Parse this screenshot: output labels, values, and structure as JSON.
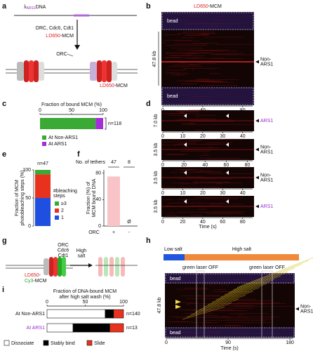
{
  "a": {
    "label": "a",
    "dna_symbol": "λ",
    "dna_sub": "ARS1",
    "dna_text": "DNA",
    "factors": "ORC, Cdc6, Cdt1",
    "mcm_dye": "LD650",
    "mcm_suffix": "-MCM",
    "orc": "ORC",
    "result_dye": "LD650",
    "result_suffix": "-MCM"
  },
  "b": {
    "label": "b",
    "title_dye": "LD650",
    "title_suffix": "-MCM",
    "length": "47.8 kb",
    "bead_top": "bead",
    "bead_bottom": "bead",
    "site": [
      "Non-",
      "ARS1"
    ],
    "xlim": [
      0,
      90
    ],
    "xticks": [
      0,
      40,
      80
    ],
    "xlabel": "Time (s)"
  },
  "c": {
    "label": "c",
    "title": "Fraction of bound MCM (%)",
    "xlim": [
      0,
      100
    ],
    "xticks": [
      0,
      50,
      100
    ],
    "series": [
      {
        "name": "At Non-ARS1",
        "color": "#3aaa35",
        "value": 88
      },
      {
        "name": "At ARS1",
        "color": "#a52fd6",
        "value": 12
      }
    ],
    "n": "n=118"
  },
  "d": {
    "label": "d",
    "xlabel": "Time (s)",
    "rows": [
      {
        "length": "7.0 kb",
        "site": [
          "ARS1"
        ],
        "xlim": [
          0,
          45
        ],
        "xticks": [
          0,
          10,
          20,
          30,
          40
        ]
      },
      {
        "length": "3.5 kb",
        "site": [
          "Non-",
          "ARS1"
        ],
        "xlim": [
          0,
          85
        ],
        "xticks": [
          0,
          20,
          40,
          60,
          80
        ]
      },
      {
        "length": "3.5 kb",
        "site": [
          "Non-",
          "ARS1"
        ],
        "xlim": [
          0,
          45
        ],
        "xticks": [
          0,
          10,
          20,
          30,
          40
        ]
      },
      {
        "length": "3.5 kb",
        "site": [
          "ARS1"
        ],
        "xlim": [
          0,
          90
        ],
        "xticks": [
          0,
          20,
          40,
          60,
          80
        ]
      }
    ]
  },
  "e": {
    "label": "e",
    "n": "n=47",
    "ylabel": [
      "Fraction of MCM",
      "photobleaching steps (%)"
    ],
    "ylim": [
      0,
      100
    ],
    "yticks": [
      0,
      50,
      100
    ],
    "legend_title": [
      "#bleaching",
      "steps"
    ],
    "series": [
      {
        "name": "1",
        "color": "#1f4fe0",
        "value": 50
      },
      {
        "name": "2",
        "color": "#e8321e",
        "value": 42
      },
      {
        "name": "≥3",
        "color": "#3aaa35",
        "value": 8
      }
    ]
  },
  "f": {
    "label": "f",
    "tethers_title": "No. of tethers",
    "tethers": [
      47,
      8
    ],
    "ylabel": [
      "Fraction (%) of",
      "MCM bound DNA"
    ],
    "ylim": [
      0,
      85
    ],
    "yticks": [
      0,
      40,
      80
    ],
    "xlabel": "ORC",
    "categories": [
      "+",
      "-"
    ],
    "values": [
      75,
      0
    ],
    "value_labels": [
      null,
      "Ø"
    ],
    "color": "#f8c4c8"
  },
  "g": {
    "label": "g",
    "factors": [
      "ORC",
      "Cdc6",
      "Cdt1"
    ],
    "dye1": "LD650",
    "dye1_suffix": "-",
    "dye2": "Cy3",
    "dye2_suffix": "-MCM",
    "wash": [
      "High",
      "salt"
    ]
  },
  "h": {
    "label": "h",
    "phases": [
      {
        "name": "Low salt",
        "color": "#2255dd"
      },
      {
        "name": "High salt",
        "color": "#f08a3a"
      }
    ],
    "laser": [
      "green laser OFF",
      "green laser OFF"
    ],
    "bead_top": "bead",
    "bead_bottom": "bead",
    "length": "47.8 kb",
    "site": [
      "Non-",
      "ARS1"
    ],
    "xlim": [
      0,
      185
    ],
    "xticks": [
      0,
      90,
      180
    ],
    "xlabel": "Time (s)"
  },
  "i": {
    "label": "i",
    "title": [
      "Fraction of DNA-bound MCM",
      "after high salt wash (%)"
    ],
    "xlim": [
      0,
      100
    ],
    "xticks": [
      0,
      50,
      100
    ],
    "categories": [
      "At Non-ARS1",
      "At ARS1"
    ],
    "n": [
      "n=140",
      "n=13"
    ],
    "series": [
      {
        "name": "Dissociate",
        "color": "#ffffff",
        "values": [
          76,
          34
        ]
      },
      {
        "name": "Stably bind",
        "color": "#000000",
        "values": [
          11,
          48
        ]
      },
      {
        "name": "Slide",
        "color": "#e8321e",
        "values": [
          13,
          18
        ]
      }
    ]
  }
}
